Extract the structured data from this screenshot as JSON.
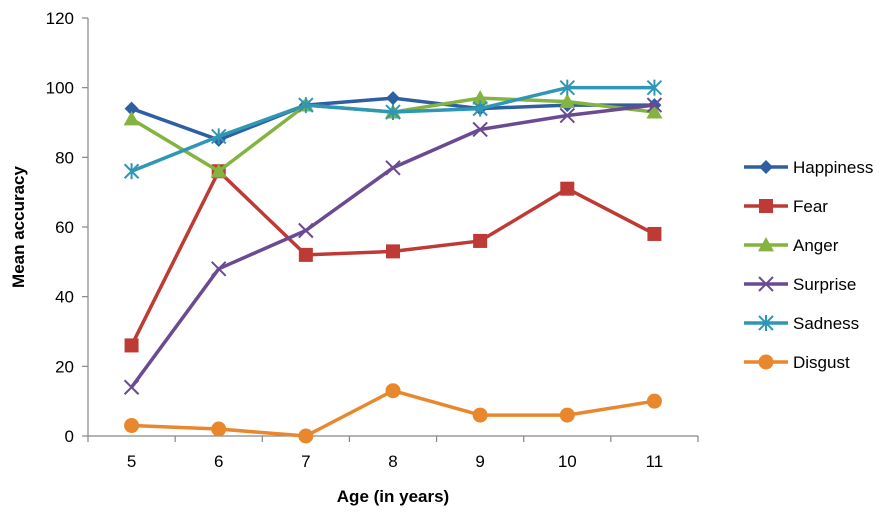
{
  "chart_data": {
    "type": "line",
    "title": "",
    "xlabel": "Age (in years)",
    "ylabel": "Mean accuracy",
    "x": [
      "5",
      "6",
      "7",
      "8",
      "9",
      "10",
      "11"
    ],
    "ylim": [
      0,
      120
    ],
    "yticks": [
      "0",
      "20",
      "40",
      "60",
      "80",
      "100",
      "120"
    ],
    "grid": false,
    "legend_position": "right",
    "series": [
      {
        "name": "Happiness",
        "color": "#2E5FA3",
        "marker": "diamond",
        "values": [
          94,
          85,
          95,
          97,
          94,
          95,
          95
        ]
      },
      {
        "name": "Fear",
        "color": "#BE3A34",
        "marker": "square",
        "values": [
          26,
          76,
          52,
          53,
          56,
          71,
          58
        ]
      },
      {
        "name": "Anger",
        "color": "#84B340",
        "marker": "triangle",
        "values": [
          91,
          76,
          95,
          93,
          97,
          96,
          93
        ]
      },
      {
        "name": "Surprise",
        "color": "#6A4A91",
        "marker": "x",
        "values": [
          14,
          48,
          59,
          77,
          88,
          92,
          95
        ]
      },
      {
        "name": "Sadness",
        "color": "#2F97B3",
        "marker": "asterisk",
        "values": [
          76,
          86,
          95,
          93,
          94,
          100,
          100
        ]
      },
      {
        "name": "Disgust",
        "color": "#E9872D",
        "marker": "circle",
        "values": [
          3,
          2,
          0,
          13,
          6,
          6,
          10
        ]
      }
    ]
  }
}
